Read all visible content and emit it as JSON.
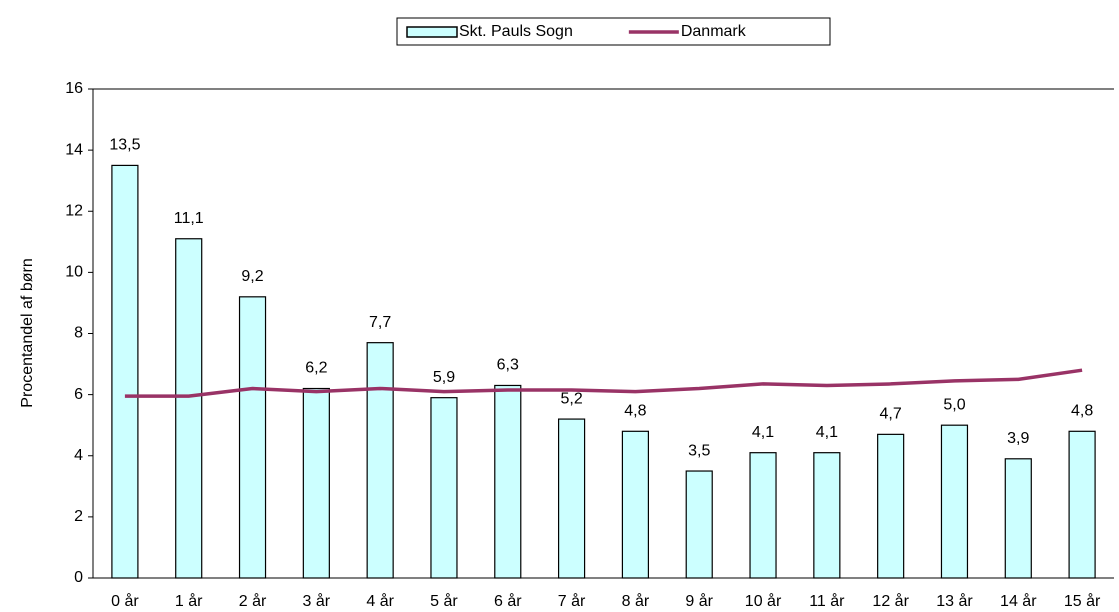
{
  "chart_data": {
    "type": "bar",
    "categories": [
      "0 år",
      "1 år",
      "2 år",
      "3 år",
      "4 år",
      "5 år",
      "6 år",
      "7 år",
      "8 år",
      "9 år",
      "10 år",
      "11 år",
      "12 år",
      "13 år",
      "14 år",
      "15 år"
    ],
    "series": [
      {
        "name": "Skt. Pauls Sogn",
        "type": "bar",
        "color": "#ccffff",
        "values": [
          13.5,
          11.1,
          9.2,
          6.2,
          7.7,
          5.9,
          6.3,
          5.2,
          4.8,
          3.5,
          4.1,
          4.1,
          4.7,
          5.0,
          3.9,
          4.8
        ],
        "value_labels": [
          "13,5",
          "11,1",
          "9,2",
          "6,2",
          "7,7",
          "5,9",
          "6,3",
          "5,2",
          "4,8",
          "3,5",
          "4,1",
          "4,1",
          "4,7",
          "5,0",
          "3,9",
          "4,8"
        ]
      },
      {
        "name": "Danmark",
        "type": "line",
        "color": "#993366",
        "values": [
          5.95,
          5.95,
          6.2,
          6.1,
          6.2,
          6.1,
          6.15,
          6.15,
          6.1,
          6.2,
          6.35,
          6.3,
          6.35,
          6.45,
          6.5,
          6.8
        ]
      }
    ],
    "ylabel": "Procentandel af børn",
    "ylim": [
      0,
      16
    ],
    "yticks": [
      0,
      2,
      4,
      6,
      8,
      10,
      12,
      14,
      16
    ],
    "grid": false,
    "legend": "top"
  }
}
